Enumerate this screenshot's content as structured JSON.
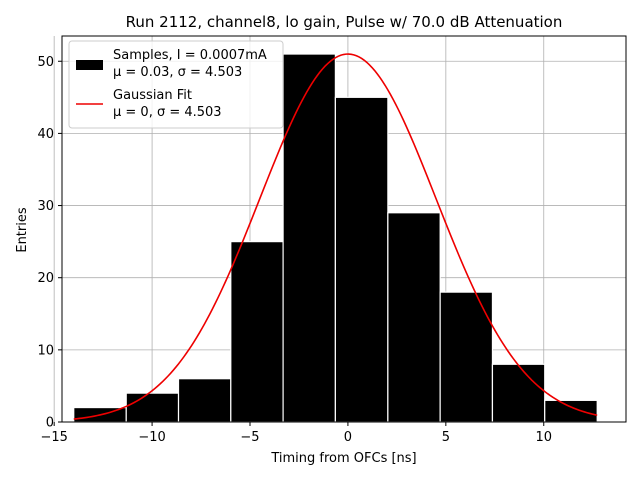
{
  "chart_data": {
    "type": "bar",
    "title": "Run 2112, channel8, lo gain, Pulse w/ 70.0 dB Attenuation",
    "xlabel": "Timing from OFCs [ns]",
    "ylabel": "Entries",
    "xlim": [
      -14.6,
      14.2
    ],
    "ylim": [
      0,
      53.5
    ],
    "xticks": [
      -15,
      -10,
      -5,
      0,
      5,
      10
    ],
    "xtick_labels": [
      "−15",
      "−10",
      "−5",
      "0",
      "5",
      "10"
    ],
    "yticks": [
      0,
      10,
      20,
      30,
      40,
      50
    ],
    "ytick_labels": [
      "0",
      "10",
      "20",
      "30",
      "40",
      "50"
    ],
    "grid": true,
    "legend_placement": "top-left",
    "histogram": {
      "name": "Samples, I = 0.0007mA",
      "stats_label": "μ = 0.03, σ = 4.503",
      "bin_edges": [
        -14.0,
        -11.32,
        -8.65,
        -5.98,
        -3.31,
        -0.64,
        2.04,
        4.71,
        7.38,
        10.05,
        12.73
      ],
      "counts": [
        2,
        4,
        6,
        25,
        51,
        45,
        29,
        18,
        8,
        3
      ],
      "color": "#000000",
      "edge_color": "#ffffff"
    },
    "fit": {
      "name": "Gaussian Fit",
      "stats_label": "μ = 0, σ = 4.503",
      "mu": 0,
      "sigma": 4.503,
      "amplitude": 51,
      "x_range": [
        -14.0,
        12.73
      ],
      "color": "#ee0000"
    }
  }
}
